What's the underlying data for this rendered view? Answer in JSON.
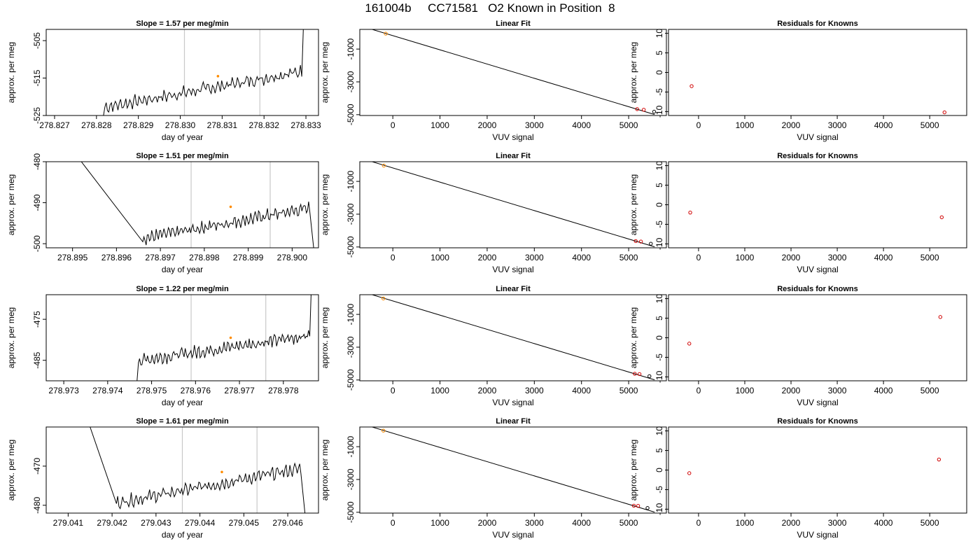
{
  "page_title": "161004b     CC71581   O2 Known in Position  8",
  "colors": {
    "trace": "#000000",
    "vline": "#c8c8c8",
    "orange": "#ff8c00",
    "red": "#d00000",
    "box": "#000000"
  },
  "chart_data": [
    {
      "type": "line",
      "title": "Slope =  1.57  per meg/min",
      "xlabel": "day of year",
      "ylabel": "approx. per meg",
      "xlim": [
        278.8268,
        278.8333
      ],
      "ylim": [
        -525,
        -502
      ],
      "xticks": [
        278.827,
        278.828,
        278.829,
        278.83,
        278.831,
        278.832,
        278.833
      ],
      "xtick_labels": [
        "278.827",
        "278.828",
        "278.829",
        "278.830",
        "278.831",
        "278.832",
        "278.833"
      ],
      "yticks": [
        -525,
        -515,
        -505
      ],
      "ytick_labels": [
        "-525",
        "-515",
        "-505"
      ],
      "vlines": [
        278.8301,
        278.8319
      ],
      "trace_start": 278.8282,
      "trace_end": 278.8329,
      "trace_base": -518,
      "trace_slope": 1.57,
      "trace_start_value": -526,
      "trace_end_value": -502,
      "marker": {
        "x": 278.8309,
        "y": -514.5
      }
    },
    {
      "type": "scatter",
      "title": "Linear Fit",
      "xlabel": "VUV signal",
      "ylabel": "approx. per meg",
      "xlim": [
        -700,
        5800
      ],
      "ylim": [
        -5050,
        200
      ],
      "xticks": [
        0,
        1000,
        2000,
        3000,
        4000,
        5000
      ],
      "xtick_labels": [
        "0",
        "1000",
        "2000",
        "3000",
        "4000",
        "5000"
      ],
      "yticks": [
        -5000,
        -3000,
        -1000
      ],
      "ytick_labels": [
        "-5000",
        "-3000",
        "-1000"
      ],
      "fit_line": {
        "x": [
          -450,
          5550
        ],
        "y": [
          210,
          -4990
        ]
      },
      "points": [
        {
          "x": -150,
          "y": -60,
          "color": "orange"
        },
        {
          "x": 5180,
          "y": -4660,
          "color": "red"
        },
        {
          "x": 5320,
          "y": -4700,
          "color": "red"
        },
        {
          "x": 5540,
          "y": -4820,
          "color": "black"
        }
      ]
    },
    {
      "type": "scatter",
      "title": "Residuals for Knowns",
      "xlabel": "VUV signal",
      "ylabel": "approx. per meg",
      "xlim": [
        -650,
        5800
      ],
      "ylim": [
        -11,
        11
      ],
      "xticks": [
        0,
        1000,
        2000,
        3000,
        4000,
        5000
      ],
      "xtick_labels": [
        "0",
        "1000",
        "2000",
        "3000",
        "4000",
        "5000"
      ],
      "yticks": [
        -10,
        -5,
        0,
        5,
        10
      ],
      "ytick_labels": [
        "-10",
        "-5",
        "0",
        "5",
        "10"
      ],
      "points": [
        {
          "x": -150,
          "y": -3.5,
          "color": "red"
        },
        {
          "x": 5320,
          "y": -10.2,
          "color": "red"
        }
      ]
    },
    {
      "type": "line",
      "title": "Slope =  1.51  per meg/min",
      "xlabel": "day of year",
      "ylabel": "approx. per meg",
      "xlim": [
        278.8944,
        278.9006
      ],
      "ylim": [
        -501,
        -480
      ],
      "xticks": [
        278.895,
        278.896,
        278.897,
        278.898,
        278.899,
        278.9
      ],
      "xtick_labels": [
        "278.895",
        "278.896",
        "278.897",
        "278.898",
        "278.899",
        "278.900"
      ],
      "yticks": [
        -500,
        -490,
        -480
      ],
      "ytick_labels": [
        "-500",
        "-490",
        "-480"
      ],
      "vlines": [
        278.8977,
        278.8995
      ],
      "trace_start": 278.8966,
      "trace_end": 278.9004,
      "trace_base": -495,
      "trace_slope": 1.51,
      "spike_start": [
        278.8952,
        -480
      ],
      "spike_end": [
        278.9005,
        -502
      ],
      "marker": {
        "x": 278.8986,
        "y": -491
      }
    },
    {
      "type": "scatter",
      "title": "Linear Fit",
      "xlabel": "VUV signal",
      "ylabel": "approx. per meg",
      "xlim": [
        -700,
        5800
      ],
      "ylim": [
        -5050,
        200
      ],
      "xticks": [
        0,
        1000,
        2000,
        3000,
        4000,
        5000
      ],
      "xtick_labels": [
        "0",
        "1000",
        "2000",
        "3000",
        "4000",
        "5000"
      ],
      "yticks": [
        -5000,
        -3000,
        -1000
      ],
      "ytick_labels": [
        "-5000",
        "-3000",
        "-1000"
      ],
      "fit_line": {
        "x": [
          -450,
          5550
        ],
        "y": [
          210,
          -4990
        ]
      },
      "points": [
        {
          "x": -190,
          "y": -40,
          "color": "orange"
        },
        {
          "x": 5150,
          "y": -4640,
          "color": "red"
        },
        {
          "x": 5260,
          "y": -4670,
          "color": "red"
        },
        {
          "x": 5470,
          "y": -4800,
          "color": "black"
        }
      ]
    },
    {
      "type": "scatter",
      "title": "Residuals for Knowns",
      "xlabel": "VUV signal",
      "ylabel": "approx. per meg",
      "xlim": [
        -650,
        5800
      ],
      "ylim": [
        -11,
        11
      ],
      "xticks": [
        0,
        1000,
        2000,
        3000,
        4000,
        5000
      ],
      "xtick_labels": [
        "0",
        "1000",
        "2000",
        "3000",
        "4000",
        "5000"
      ],
      "yticks": [
        -10,
        -5,
        0,
        5,
        10
      ],
      "ytick_labels": [
        "-10",
        "-5",
        "0",
        "5",
        "10"
      ],
      "points": [
        {
          "x": -180,
          "y": -2.0,
          "color": "red"
        },
        {
          "x": 5260,
          "y": -3.2,
          "color": "red"
        }
      ]
    },
    {
      "type": "line",
      "title": "Slope =  1.22  per meg/min",
      "xlabel": "day of year",
      "ylabel": "approx. per meg",
      "xlim": [
        278.9726,
        278.9788
      ],
      "ylim": [
        -490,
        -469
      ],
      "xticks": [
        278.973,
        278.974,
        278.975,
        278.976,
        278.977,
        278.978
      ],
      "xtick_labels": [
        "278.973",
        "278.974",
        "278.975",
        "278.976",
        "278.977",
        "278.978"
      ],
      "yticks": [
        -485,
        -475
      ],
      "ytick_labels": [
        "-485",
        "-475"
      ],
      "vlines": [
        278.9759,
        278.9776
      ],
      "trace_start": 278.9747,
      "trace_end": 278.9786,
      "trace_base": -482,
      "trace_slope": 1.22,
      "trace_start_value": -491,
      "trace_end_value": -469,
      "marker": {
        "x": 278.9768,
        "y": -479.5
      }
    },
    {
      "type": "scatter",
      "title": "Linear Fit",
      "xlabel": "VUV signal",
      "ylabel": "approx. per meg",
      "xlim": [
        -700,
        5800
      ],
      "ylim": [
        -5050,
        200
      ],
      "xticks": [
        0,
        1000,
        2000,
        3000,
        4000,
        5000
      ],
      "xtick_labels": [
        "0",
        "1000",
        "2000",
        "3000",
        "4000",
        "5000"
      ],
      "yticks": [
        -5000,
        -3000,
        -1000
      ],
      "ytick_labels": [
        "-5000",
        "-3000",
        "-1000"
      ],
      "fit_line": {
        "x": [
          -450,
          5550
        ],
        "y": [
          210,
          -4990
        ]
      },
      "points": [
        {
          "x": -200,
          "y": -30,
          "color": "orange"
        },
        {
          "x": 5130,
          "y": -4620,
          "color": "red"
        },
        {
          "x": 5230,
          "y": -4640,
          "color": "red"
        },
        {
          "x": 5440,
          "y": -4770,
          "color": "black"
        }
      ]
    },
    {
      "type": "scatter",
      "title": "Residuals for Knowns",
      "xlabel": "VUV signal",
      "ylabel": "approx. per meg",
      "xlim": [
        -650,
        5800
      ],
      "ylim": [
        -11,
        11
      ],
      "xticks": [
        0,
        1000,
        2000,
        3000,
        4000,
        5000
      ],
      "xtick_labels": [
        "0",
        "1000",
        "2000",
        "3000",
        "4000",
        "5000"
      ],
      "yticks": [
        -10,
        -5,
        0,
        5,
        10
      ],
      "ytick_labels": [
        "-10",
        "-5",
        "0",
        "5",
        "10"
      ],
      "points": [
        {
          "x": -200,
          "y": -1.5,
          "color": "red"
        },
        {
          "x": 5230,
          "y": 5.3,
          "color": "red"
        }
      ]
    },
    {
      "type": "line",
      "title": "Slope =  1.61  per meg/min",
      "xlabel": "day of year",
      "ylabel": "approx. per meg",
      "xlim": [
        279.0405,
        279.0467
      ],
      "ylim": [
        -482,
        -460
      ],
      "xticks": [
        279.041,
        279.042,
        279.043,
        279.044,
        279.045,
        279.046
      ],
      "xtick_labels": [
        "279.041",
        "279.042",
        "279.043",
        "279.044",
        "279.045",
        "279.046"
      ],
      "yticks": [
        -480,
        -470
      ],
      "ytick_labels": [
        "-480",
        "-470"
      ],
      "vlines": [
        279.0436,
        279.0453
      ],
      "trace_start": 279.0421,
      "trace_end": 279.0463,
      "trace_base": -475,
      "trace_slope": 1.61,
      "spike_start": [
        279.0415,
        -460
      ],
      "spike_end": [
        279.0464,
        -483
      ],
      "marker": {
        "x": 279.0445,
        "y": -471.5
      }
    },
    {
      "type": "scatter",
      "title": "Linear Fit",
      "xlabel": "VUV signal",
      "ylabel": "approx. per meg",
      "xlim": [
        -700,
        5800
      ],
      "ylim": [
        -5050,
        200
      ],
      "xticks": [
        0,
        1000,
        2000,
        3000,
        4000,
        5000
      ],
      "xtick_labels": [
        "0",
        "1000",
        "2000",
        "3000",
        "4000",
        "5000"
      ],
      "yticks": [
        -5000,
        -3000,
        -1000
      ],
      "ytick_labels": [
        "-5000",
        "-3000",
        "-1000"
      ],
      "fit_line": {
        "x": [
          -450,
          5550
        ],
        "y": [
          210,
          -4990
        ]
      },
      "points": [
        {
          "x": -200,
          "y": -20,
          "color": "orange"
        },
        {
          "x": 5110,
          "y": -4600,
          "color": "red"
        },
        {
          "x": 5200,
          "y": -4610,
          "color": "red"
        },
        {
          "x": 5400,
          "y": -4740,
          "color": "black"
        }
      ]
    },
    {
      "type": "scatter",
      "title": "Residuals for Knowns",
      "xlabel": "VUV signal",
      "ylabel": "approx. per meg",
      "xlim": [
        -650,
        5800
      ],
      "ylim": [
        -11,
        11
      ],
      "xticks": [
        0,
        1000,
        2000,
        3000,
        4000,
        5000
      ],
      "xtick_labels": [
        "0",
        "1000",
        "2000",
        "3000",
        "4000",
        "5000"
      ],
      "yticks": [
        -10,
        -5,
        0,
        5,
        10
      ],
      "ytick_labels": [
        "-10",
        "-5",
        "0",
        "5",
        "10"
      ],
      "points": [
        {
          "x": -200,
          "y": -0.8,
          "color": "red"
        },
        {
          "x": 5200,
          "y": 2.7,
          "color": "red"
        }
      ]
    }
  ]
}
